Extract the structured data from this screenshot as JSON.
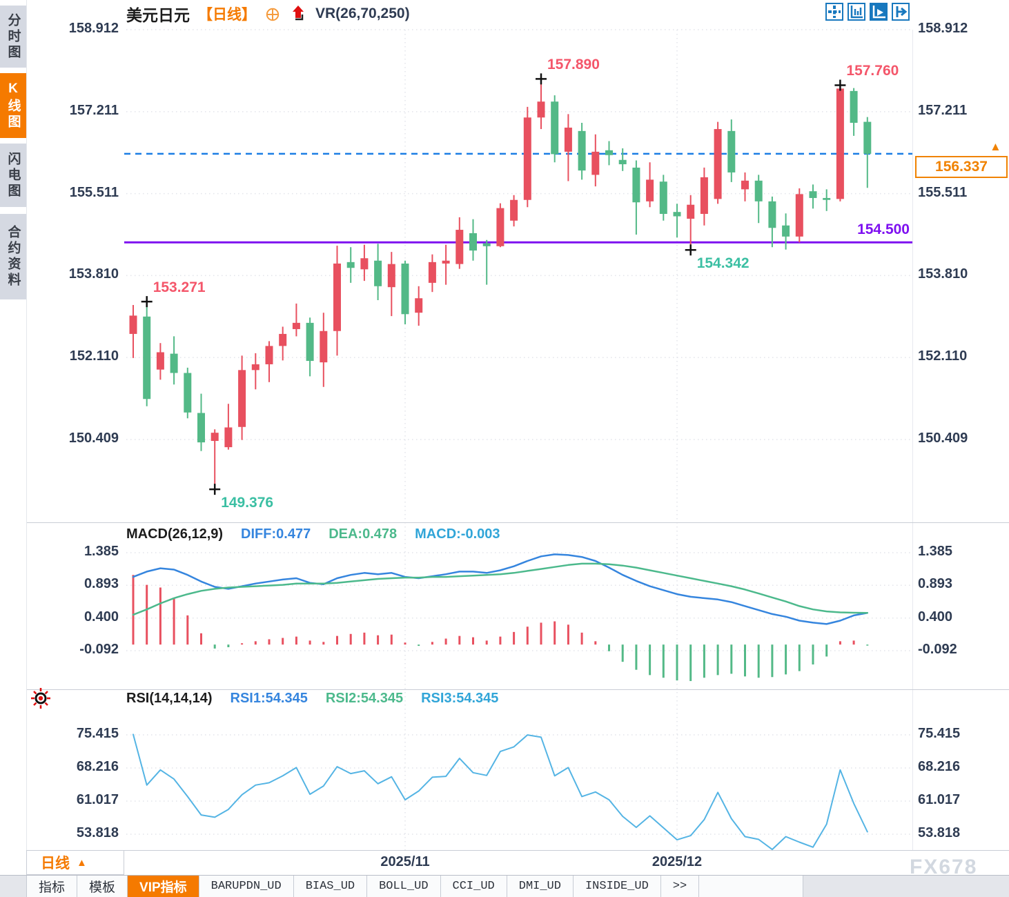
{
  "app": {
    "watermark": "FX678"
  },
  "sidebar": {
    "items": [
      {
        "label": "分时图",
        "selected": false
      },
      {
        "label": "K线图",
        "selected": true
      },
      {
        "label": "闪电图",
        "selected": false
      },
      {
        "label": "合约资料",
        "selected": false
      }
    ]
  },
  "title_bar": {
    "symbol": "美元日元",
    "period": "【日线】",
    "overlay_indicator": "VR(26,70,250)"
  },
  "toolbar": {
    "icons": [
      "crosshair",
      "axis-scale",
      "axis-play",
      "pane-export"
    ]
  },
  "timeframe_box": {
    "label": "日线"
  },
  "bottom_tabs": {
    "items": [
      {
        "label": "指标",
        "selected": false,
        "mono": false
      },
      {
        "label": "模板",
        "selected": false,
        "mono": false
      },
      {
        "label": "VIP指标",
        "selected": true,
        "mono": false
      },
      {
        "label": "BARUPDN_UD",
        "selected": false,
        "mono": true
      },
      {
        "label": "BIAS_UD",
        "selected": false,
        "mono": true
      },
      {
        "label": "BOLL_UD",
        "selected": false,
        "mono": true
      },
      {
        "label": "CCI_UD",
        "selected": false,
        "mono": true
      },
      {
        "label": "DMI_UD",
        "selected": false,
        "mono": true
      },
      {
        "label": "INSIDE_UD",
        "selected": false,
        "mono": true
      },
      {
        "label": ">>",
        "selected": false,
        "mono": true
      }
    ]
  },
  "colors": {
    "up": "#e8505f",
    "down": "#53b987",
    "diff_line": "#3585de",
    "dea_line": "#4cb98c",
    "rsi_line": "#54b4e4",
    "dashed_hline": "#1a7de4",
    "purple_hline": "#7e10f0",
    "accent_orange": "#f57a00",
    "price_tag": "#f08200",
    "annot_high": "#f4566a",
    "annot_low": "#3bbfa3",
    "axis_text": "#2e3b52"
  },
  "chart_data": [
    {
      "type": "candlestick",
      "title": "美元日元 日线",
      "y_ticks": [
        158.912,
        157.211,
        155.511,
        153.81,
        152.11,
        150.409
      ],
      "x_tick_labels": [
        {
          "text": "2025/11",
          "candle_index": 20
        },
        {
          "text": "2025/12",
          "candle_index": 40
        }
      ],
      "grid": true,
      "candles_ohlc": [
        [
          152.6,
          153.2,
          152.1,
          152.98
        ],
        [
          152.96,
          153.271,
          151.1,
          151.25
        ],
        [
          151.86,
          152.41,
          151.65,
          152.22
        ],
        [
          152.19,
          152.55,
          151.55,
          151.79
        ],
        [
          151.79,
          151.9,
          150.85,
          150.97
        ],
        [
          150.96,
          151.36,
          150.17,
          150.35
        ],
        [
          150.38,
          150.62,
          149.376,
          150.55
        ],
        [
          150.25,
          151.15,
          150.2,
          150.66
        ],
        [
          150.67,
          152.15,
          150.4,
          151.85
        ],
        [
          151.85,
          152.2,
          151.45,
          151.97
        ],
        [
          151.97,
          152.45,
          151.6,
          152.35
        ],
        [
          152.35,
          152.75,
          152.05,
          152.6
        ],
        [
          152.7,
          153.23,
          152.55,
          152.83
        ],
        [
          152.83,
          152.94,
          151.72,
          152.04
        ],
        [
          152.01,
          153.04,
          151.5,
          152.66
        ],
        [
          152.66,
          154.43,
          152.15,
          154.06
        ],
        [
          154.09,
          154.4,
          153.66,
          153.97
        ],
        [
          153.94,
          154.45,
          153.7,
          154.17
        ],
        [
          154.12,
          154.47,
          153.3,
          153.59
        ],
        [
          153.57,
          154.3,
          152.97,
          154.05
        ],
        [
          154.06,
          154.12,
          152.8,
          153.01
        ],
        [
          153.04,
          153.59,
          152.77,
          153.34
        ],
        [
          153.66,
          154.25,
          153.47,
          154.09
        ],
        [
          154.06,
          154.45,
          153.62,
          154.12
        ],
        [
          154.05,
          155.02,
          153.95,
          154.76
        ],
        [
          154.69,
          154.98,
          154.12,
          154.33
        ],
        [
          154.48,
          154.55,
          153.62,
          154.42
        ],
        [
          154.42,
          155.31,
          154.4,
          155.21
        ],
        [
          154.95,
          155.48,
          154.83,
          155.38
        ],
        [
          155.38,
          157.31,
          155.23,
          157.09
        ],
        [
          157.09,
          157.89,
          156.85,
          157.42
        ],
        [
          157.42,
          157.55,
          156.16,
          156.33
        ],
        [
          156.38,
          157.16,
          155.77,
          156.88
        ],
        [
          156.81,
          156.98,
          155.8,
          155.99
        ],
        [
          155.9,
          156.74,
          155.66,
          156.38
        ],
        [
          156.41,
          156.6,
          156.1,
          156.31
        ],
        [
          156.21,
          156.45,
          155.98,
          156.12
        ],
        [
          156.05,
          156.2,
          154.66,
          155.33
        ],
        [
          155.35,
          156.16,
          155.23,
          155.8
        ],
        [
          155.76,
          155.9,
          154.95,
          155.09
        ],
        [
          155.13,
          155.3,
          154.6,
          155.04
        ],
        [
          154.99,
          155.48,
          154.342,
          155.28
        ],
        [
          155.09,
          156.05,
          154.85,
          155.85
        ],
        [
          155.4,
          157.0,
          155.3,
          156.85
        ],
        [
          156.81,
          157.05,
          155.75,
          155.95
        ],
        [
          155.6,
          155.95,
          155.35,
          155.78
        ],
        [
          155.78,
          155.9,
          154.9,
          155.35
        ],
        [
          155.35,
          155.45,
          154.4,
          154.8
        ],
        [
          154.85,
          155.1,
          154.35,
          154.62
        ],
        [
          154.62,
          155.62,
          154.5,
          155.5
        ],
        [
          155.56,
          155.7,
          155.2,
          155.42
        ],
        [
          155.42,
          155.6,
          155.15,
          155.38
        ],
        [
          155.4,
          157.76,
          155.35,
          157.69
        ],
        [
          157.64,
          157.7,
          156.71,
          156.98
        ],
        [
          157.0,
          157.1,
          155.63,
          156.337
        ]
      ],
      "annotations": [
        {
          "candle_index": 1,
          "at": "high",
          "text": "153.271"
        },
        {
          "candle_index": 6,
          "at": "low",
          "text": "149.376"
        },
        {
          "candle_index": 30,
          "at": "high",
          "text": "157.890"
        },
        {
          "candle_index": 41,
          "at": "low",
          "text": "154.342"
        },
        {
          "candle_index": 52,
          "at": "high",
          "text": "157.760"
        }
      ],
      "hlines": [
        {
          "value": 156.337,
          "style": "dashed",
          "label": "156.337",
          "label_type": "price-box"
        },
        {
          "value": 154.5,
          "style": "solid",
          "label": "154.500",
          "label_type": "text"
        }
      ]
    },
    {
      "type": "macd",
      "legend": {
        "name": "MACD(26,12,9)",
        "diff": "DIFF:0.477",
        "dea": "DEA:0.478",
        "macd": "MACD:-0.003"
      },
      "y_ticks": [
        1.385,
        0.893,
        0.4,
        -0.092
      ],
      "diff_series": [
        1.02,
        1.1,
        1.15,
        1.13,
        1.05,
        0.95,
        0.87,
        0.84,
        0.88,
        0.92,
        0.95,
        0.98,
        1.0,
        0.93,
        0.91,
        1.0,
        1.05,
        1.08,
        1.06,
        1.08,
        1.02,
        1.0,
        1.03,
        1.06,
        1.1,
        1.1,
        1.08,
        1.12,
        1.18,
        1.26,
        1.33,
        1.36,
        1.35,
        1.32,
        1.26,
        1.16,
        1.05,
        0.96,
        0.88,
        0.82,
        0.76,
        0.72,
        0.7,
        0.68,
        0.64,
        0.58,
        0.52,
        0.46,
        0.42,
        0.36,
        0.33,
        0.31,
        0.36,
        0.44,
        0.477
      ],
      "dea_series": [
        0.45,
        0.53,
        0.62,
        0.7,
        0.76,
        0.81,
        0.84,
        0.86,
        0.87,
        0.88,
        0.89,
        0.9,
        0.92,
        0.92,
        0.92,
        0.93,
        0.95,
        0.97,
        0.99,
        1.0,
        1.01,
        1.01,
        1.02,
        1.02,
        1.03,
        1.04,
        1.05,
        1.06,
        1.08,
        1.11,
        1.14,
        1.17,
        1.2,
        1.22,
        1.22,
        1.21,
        1.19,
        1.16,
        1.12,
        1.08,
        1.04,
        1.0,
        0.96,
        0.92,
        0.88,
        0.83,
        0.77,
        0.71,
        0.65,
        0.58,
        0.53,
        0.5,
        0.485,
        0.48,
        0.478
      ],
      "hist_series": [
        1.05,
        0.9,
        0.86,
        0.7,
        0.44,
        0.17,
        -0.06,
        -0.04,
        0.02,
        0.05,
        0.08,
        0.1,
        0.12,
        0.06,
        0.04,
        0.13,
        0.16,
        0.18,
        0.14,
        0.15,
        0.03,
        -0.02,
        0.04,
        0.09,
        0.13,
        0.11,
        0.06,
        0.12,
        0.19,
        0.27,
        0.33,
        0.35,
        0.3,
        0.18,
        0.05,
        -0.1,
        -0.26,
        -0.38,
        -0.46,
        -0.5,
        -0.54,
        -0.55,
        -0.5,
        -0.46,
        -0.44,
        -0.48,
        -0.5,
        -0.49,
        -0.45,
        -0.4,
        -0.3,
        -0.18,
        0.05,
        0.06,
        -0.003
      ]
    },
    {
      "type": "line",
      "legend": {
        "name": "RSI(14,14,14)",
        "rsi1": "RSI1:54.345",
        "rsi2": "RSI2:54.345",
        "rsi3": "RSI3:54.345"
      },
      "y_ticks": [
        75.415,
        68.216,
        61.017,
        53.818
      ],
      "series": [
        75.5,
        64.5,
        67.8,
        65.8,
        62.0,
        58.0,
        57.5,
        59.2,
        62.4,
        64.5,
        65.0,
        66.5,
        68.3,
        62.5,
        64.3,
        68.5,
        67.0,
        67.6,
        64.8,
        66.3,
        61.3,
        63.2,
        66.2,
        66.4,
        70.3,
        67.2,
        66.6,
        71.8,
        72.8,
        75.4,
        74.9,
        66.5,
        68.3,
        62.0,
        63.0,
        61.3,
        57.7,
        55.3,
        57.8,
        55.2,
        52.6,
        53.5,
        57.0,
        62.9,
        57.2,
        53.3,
        52.7,
        50.5,
        53.3,
        52.1,
        51.0,
        56.0,
        67.8,
        60.5,
        54.345
      ]
    }
  ]
}
